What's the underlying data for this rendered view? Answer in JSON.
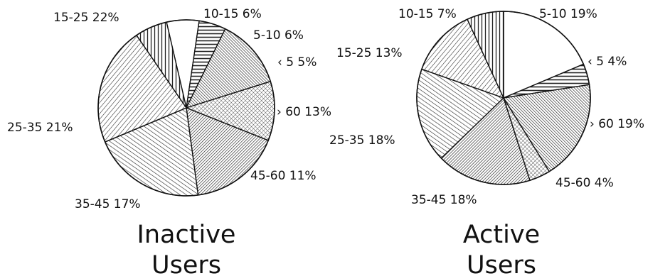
{
  "chart_data": [
    {
      "type": "pie",
      "caption": [
        "Inactive",
        "Users"
      ],
      "slices": [
        {
          "category": "5-10",
          "value": 6,
          "label": "5-10 6%",
          "pattern": "white"
        },
        {
          "category": "< 5",
          "value": 5,
          "label": "‹ 5 5%",
          "pattern": "hlines"
        },
        {
          "category": "> 60",
          "value": 13,
          "label": "› 60 13%",
          "pattern": "diag-up-dense"
        },
        {
          "category": "45-60",
          "value": 11,
          "label": "45-60 11%",
          "pattern": "crosshatch"
        },
        {
          "category": "35-45",
          "value": 17,
          "label": "35-45 17%",
          "pattern": "diag-down-dense"
        },
        {
          "category": "25-35",
          "value": 21,
          "label": "25-35 21%",
          "pattern": "diag-up"
        },
        {
          "category": "15-25",
          "value": 22,
          "label": "15-25 22%",
          "pattern": "diag-down"
        },
        {
          "category": "10-15",
          "value": 6,
          "label": "10-15 6%",
          "pattern": "vlines"
        }
      ]
    },
    {
      "type": "pie",
      "caption": [
        "Active",
        "Users"
      ],
      "slices": [
        {
          "category": "5-10",
          "value": 19,
          "label": "5-10 19%",
          "pattern": "white"
        },
        {
          "category": "< 5",
          "value": 4,
          "label": "‹ 5 4%",
          "pattern": "hlines"
        },
        {
          "category": "> 60",
          "value": 19,
          "label": "› 60 19%",
          "pattern": "diag-up-dense"
        },
        {
          "category": "45-60",
          "value": 4,
          "label": "45-60 4%",
          "pattern": "crosshatch"
        },
        {
          "category": "35-45",
          "value": 18,
          "label": "35-45 18%",
          "pattern": "diag-down-dense"
        },
        {
          "category": "25-35",
          "value": 18,
          "label": "25-35 18%",
          "pattern": "diag-up"
        },
        {
          "category": "15-25",
          "value": 13,
          "label": "15-25 13%",
          "pattern": "diag-down"
        },
        {
          "category": "10-15",
          "value": 7,
          "label": "10-15 7%",
          "pattern": "vlines"
        }
      ]
    }
  ]
}
